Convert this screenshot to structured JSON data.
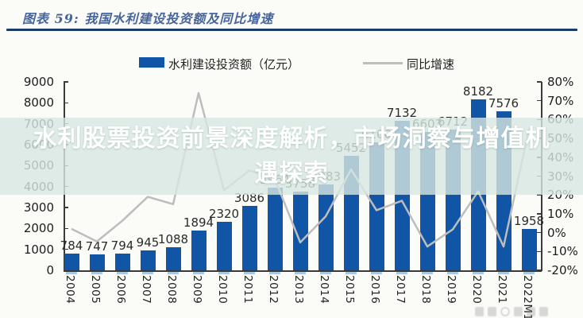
{
  "header": {
    "title": "图表 59: 我国水利建设投资额及同比增速"
  },
  "legend": {
    "bar_label": "水利建设投资额（亿元）",
    "line_label": "同比增速"
  },
  "overlay": {
    "line1": "水利股票投资前景深度解析，市场洞察与增值机",
    "line2": "遇探索"
  },
  "colors": {
    "bar": "#1156a6",
    "line": "#bdbdbd",
    "title": "#46659c",
    "header_rule": "#1e3a67",
    "overlay_band": "#d7e7e1",
    "overlay_text": "#ffffff",
    "axis": "#3a3a3a",
    "x_tick_dash": "#a9c7e6",
    "value_label": "#2a2a2a"
  },
  "chart_data": {
    "type": "bar+line combo",
    "title": "我国水利建设投资额及同比增速",
    "categories": [
      "2004",
      "2005",
      "2006",
      "2007",
      "2008",
      "2009",
      "2010",
      "2011",
      "2012",
      "2013",
      "2014",
      "2015",
      "2016",
      "2017",
      "2018",
      "2019",
      "2020",
      "2021",
      "2022M1"
    ],
    "series": [
      {
        "name": "水利建设投资额（亿元）",
        "type": "bar",
        "axis": "left",
        "values": [
          784,
          747,
          794,
          945,
          1088,
          1894,
          2320,
          3086,
          3964,
          3758,
          4083,
          5452,
          6100,
          7132,
          6603,
          6712,
          8182,
          7576,
          1958
        ],
        "data_labels_shown": true
      },
      {
        "name": "同比增速",
        "type": "line",
        "axis": "right",
        "values_pct": [
          2.0,
          -4.7,
          6.3,
          19.0,
          15.1,
          74.1,
          22.5,
          33.0,
          28.5,
          -5.2,
          8.6,
          33.5,
          11.9,
          16.9,
          -7.4,
          1.7,
          21.9,
          -7.4,
          55.0
        ]
      }
    ],
    "left_axis": {
      "min": 0,
      "max": 9000,
      "tick_step": 1000,
      "ticks": [
        0,
        1000,
        2000,
        3000,
        4000,
        5000,
        6000,
        7000,
        8000,
        9000
      ]
    },
    "right_axis": {
      "min": -20,
      "max": 80,
      "tick_step": 10,
      "unit": "%",
      "ticks": [
        -20,
        -10,
        0,
        10,
        20,
        30,
        40,
        50,
        60,
        70,
        80
      ]
    },
    "grid": false,
    "legend_position": "top"
  }
}
